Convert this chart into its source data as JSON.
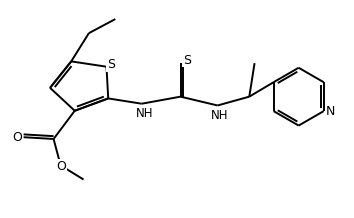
{
  "bg_color": "#ffffff",
  "line_color": "#000000",
  "line_width": 1.4,
  "font_size": 8.5,
  "figsize": [
    3.54,
    2.18
  ],
  "dpi": 100,
  "xlim": [
    0,
    10
  ],
  "ylim": [
    0,
    5.8
  ]
}
